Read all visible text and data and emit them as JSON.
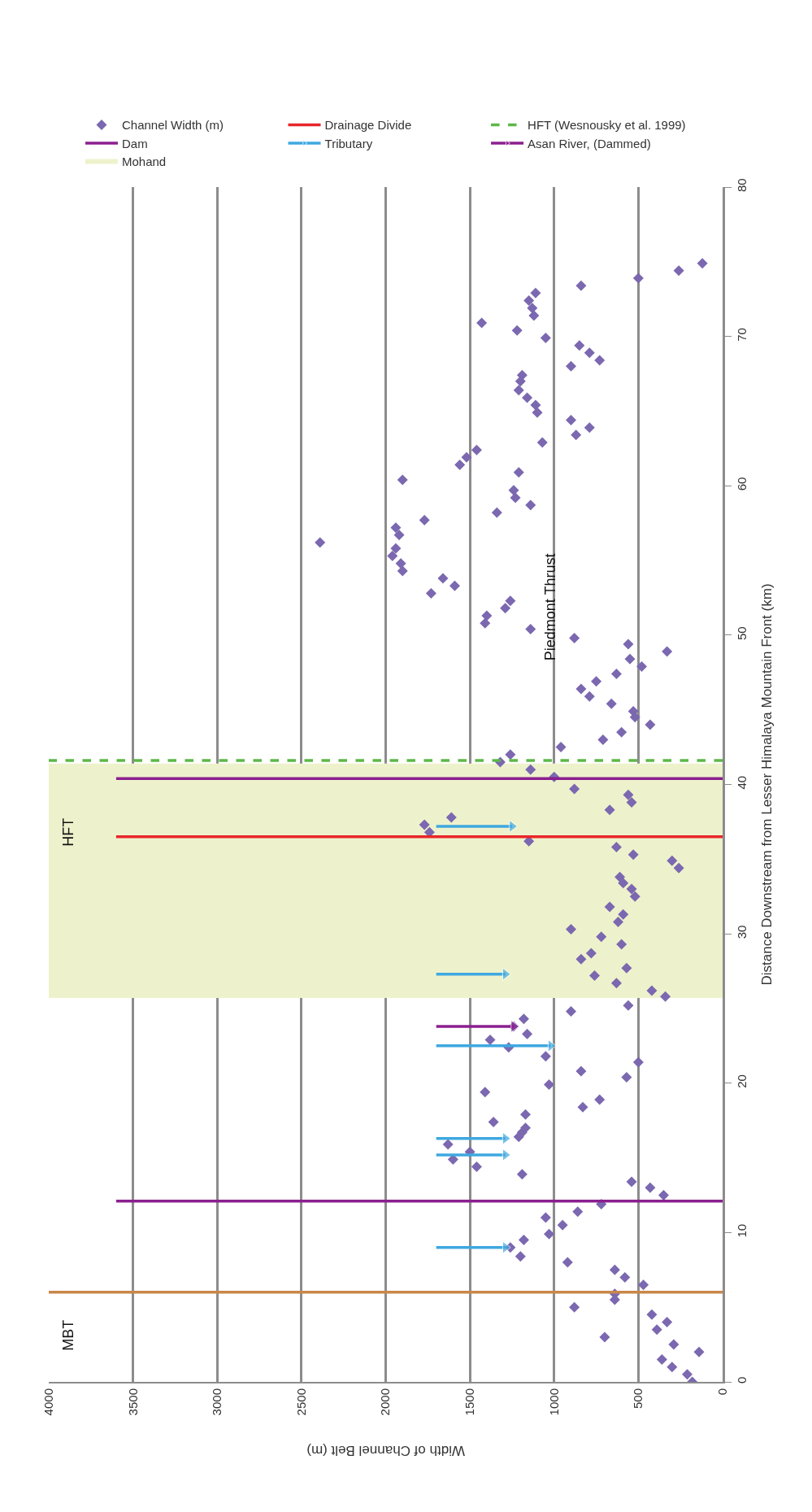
{
  "chart_data": {
    "type": "scatter",
    "ylabel": "Distance Downstream from Lesser Himalaya Mountain Front (km)",
    "xlabel": "Width of Channel Belt (m)",
    "ylim": [
      0,
      80
    ],
    "yticks": [
      0,
      10,
      20,
      30,
      40,
      50,
      60,
      70,
      80
    ],
    "xlim": [
      4000,
      0
    ],
    "xticks": [
      4000,
      3500,
      3000,
      2500,
      2000,
      1500,
      1000,
      500,
      0
    ],
    "grid": "x",
    "legend": "top",
    "series": [
      {
        "name": "Channel Width (m)",
        "marker": "diamond",
        "color": "#7b68b0",
        "values": [
          0.0,
          0.5,
          1.0,
          1.5,
          2.0,
          2.5,
          3.0,
          3.5,
          4.0,
          4.5,
          5.0,
          5.5,
          5.9,
          6.5,
          7.0,
          7.5,
          8.0,
          8.4,
          9.0,
          9.5,
          9.9,
          10.5,
          11.0,
          11.4,
          11.9,
          12.5,
          13.0,
          13.4,
          13.9,
          14.4,
          14.9,
          15.4,
          15.9,
          16.4,
          16.7,
          17.0,
          17.4,
          17.9,
          18.4,
          18.9,
          19.4,
          19.9,
          20.4,
          20.8,
          21.4,
          21.8,
          22.4,
          22.9,
          23.3,
          23.8,
          24.3,
          24.8,
          25.2,
          25.8,
          26.2,
          26.7,
          27.2,
          27.7,
          28.3,
          28.7,
          29.3,
          29.8,
          30.3,
          30.8,
          31.3,
          31.8,
          32.5,
          33.0,
          33.4,
          33.8,
          34.4,
          34.9,
          35.3,
          35.8,
          36.2,
          36.8,
          37.3,
          37.8,
          38.3,
          38.8,
          39.3,
          39.7,
          40.5,
          41.0,
          41.5,
          42.0,
          42.5,
          43.0,
          43.5,
          44.0,
          44.5,
          44.9,
          45.4,
          45.9,
          46.4,
          46.9,
          47.4,
          47.9,
          48.4,
          48.9,
          49.4,
          49.8,
          50.4,
          50.8,
          51.3,
          51.8,
          52.3,
          52.8,
          53.3,
          53.8,
          54.3,
          54.8,
          55.3,
          55.8,
          56.2,
          56.7,
          57.2,
          57.7,
          58.2,
          58.7,
          59.2,
          59.7,
          60.4,
          60.9,
          61.4,
          61.9,
          62.4,
          62.9,
          63.4,
          63.9,
          64.4,
          64.9,
          65.4,
          65.9,
          66.4,
          67.0,
          67.4,
          68.0,
          68.4,
          68.9,
          69.4,
          69.9,
          70.4,
          70.9,
          71.4,
          71.9,
          72.4,
          72.9,
          73.4,
          73.9,
          74.4,
          74.9
        ],
        "x": [
          180,
          210,
          300,
          360,
          140,
          290,
          700,
          390,
          330,
          420,
          880,
          640,
          640,
          470,
          580,
          640,
          920,
          1200,
          1260,
          1180,
          1030,
          950,
          1050,
          860,
          720,
          350,
          430,
          540,
          1190,
          1460,
          1600,
          1500,
          1630,
          1210,
          1190,
          1170,
          1360,
          1170,
          830,
          730,
          1410,
          1030,
          570,
          840,
          500,
          1050,
          1270,
          1380,
          1160,
          1240,
          1180,
          900,
          560,
          340,
          420,
          630,
          760,
          570,
          840,
          780,
          600,
          720,
          900,
          620,
          590,
          670,
          520,
          540,
          590,
          610,
          260,
          300,
          530,
          630,
          1150,
          1740,
          1770,
          1610,
          670,
          540,
          560,
          880,
          1000,
          1140,
          1320,
          1260,
          960,
          710,
          600,
          430,
          520,
          530,
          660,
          790,
          840,
          750,
          630,
          480,
          550,
          330,
          560,
          880,
          1140,
          1410,
          1400,
          1290,
          1260,
          1730,
          1590,
          1660,
          1900,
          1910,
          1960,
          1940,
          2390,
          1920,
          1940,
          1770,
          1340,
          1140,
          1230,
          1240,
          1900,
          1210,
          1560,
          1520,
          1460,
          1070,
          870,
          790,
          900,
          1100,
          1110,
          1160,
          1210,
          1200,
          1190,
          900,
          730,
          790,
          850,
          1050,
          1220,
          1430,
          1120,
          1130,
          1150,
          1110,
          840,
          500,
          260,
          120
        ]
      },
      {
        "name": "Drainage Divide",
        "type": "line",
        "color": "#e8262a",
        "line_style": "solid",
        "x": [
          0,
          3600
        ],
        "values": [
          36.5,
          36.5
        ]
      },
      {
        "name": "HFT (Wesnousky et al. 1999)",
        "type": "line",
        "color": "#5cb848",
        "line_style": "dashed",
        "x": [
          0,
          4000
        ],
        "values": [
          41.6,
          41.6
        ]
      },
      {
        "name": "Dam",
        "type": "line",
        "color": "#8b1f8f",
        "line_style": "solid",
        "x": [
          0,
          3600
        ],
        "values": [
          12.1,
          12.1
        ]
      },
      {
        "type": "line",
        "color": "#8b1f8f",
        "line_style": "solid",
        "x": [
          0,
          3600
        ],
        "values": [
          40.4,
          40.4
        ]
      },
      {
        "name": "Tributary",
        "type": "line",
        "color": "#3fa8e0",
        "line_style": "solid",
        "marker": "triangle",
        "x": [
          1700,
          1290
        ],
        "values": [
          9.0,
          9.0
        ]
      },
      {
        "type": "line",
        "color": "#3fa8e0",
        "line_style": "solid",
        "marker": "triangle",
        "x": [
          1700,
          1290
        ],
        "values": [
          15.2,
          15.2
        ]
      },
      {
        "type": "line",
        "color": "#3fa8e0",
        "line_style": "solid",
        "marker": "triangle",
        "x": [
          1700,
          1290
        ],
        "values": [
          16.3,
          16.3
        ]
      },
      {
        "type": "line",
        "color": "#3fa8e0",
        "line_style": "solid",
        "marker": "triangle",
        "x": [
          1700,
          1020
        ],
        "values": [
          22.5,
          22.5
        ]
      },
      {
        "type": "line",
        "color": "#3fa8e0",
        "line_style": "solid",
        "marker": "triangle",
        "x": [
          1700,
          1290
        ],
        "values": [
          27.3,
          27.3
        ]
      },
      {
        "type": "line",
        "color": "#3fa8e0",
        "line_style": "solid",
        "marker": "triangle",
        "x": [
          1700,
          1250
        ],
        "values": [
          37.2,
          37.2
        ]
      },
      {
        "name": "Asan River, (Dammed)",
        "type": "line",
        "color": "#8b1f8f",
        "line_style": "solid",
        "marker": "triangle",
        "x": [
          1700,
          1240
        ],
        "values": [
          23.8,
          23.8
        ]
      },
      {
        "type": "line",
        "color": "#c8874a",
        "line_style": "solid",
        "x": [
          0,
          4000
        ],
        "values": [
          6.0,
          6.0
        ]
      }
    ],
    "bands": [
      {
        "axis": "y",
        "from": 25.7,
        "to": 41.4,
        "label": "Mohand",
        "color": "#eef2cc"
      }
    ],
    "annotations": [
      "MBT",
      "HFT",
      "Piedmont Thrust"
    ]
  }
}
